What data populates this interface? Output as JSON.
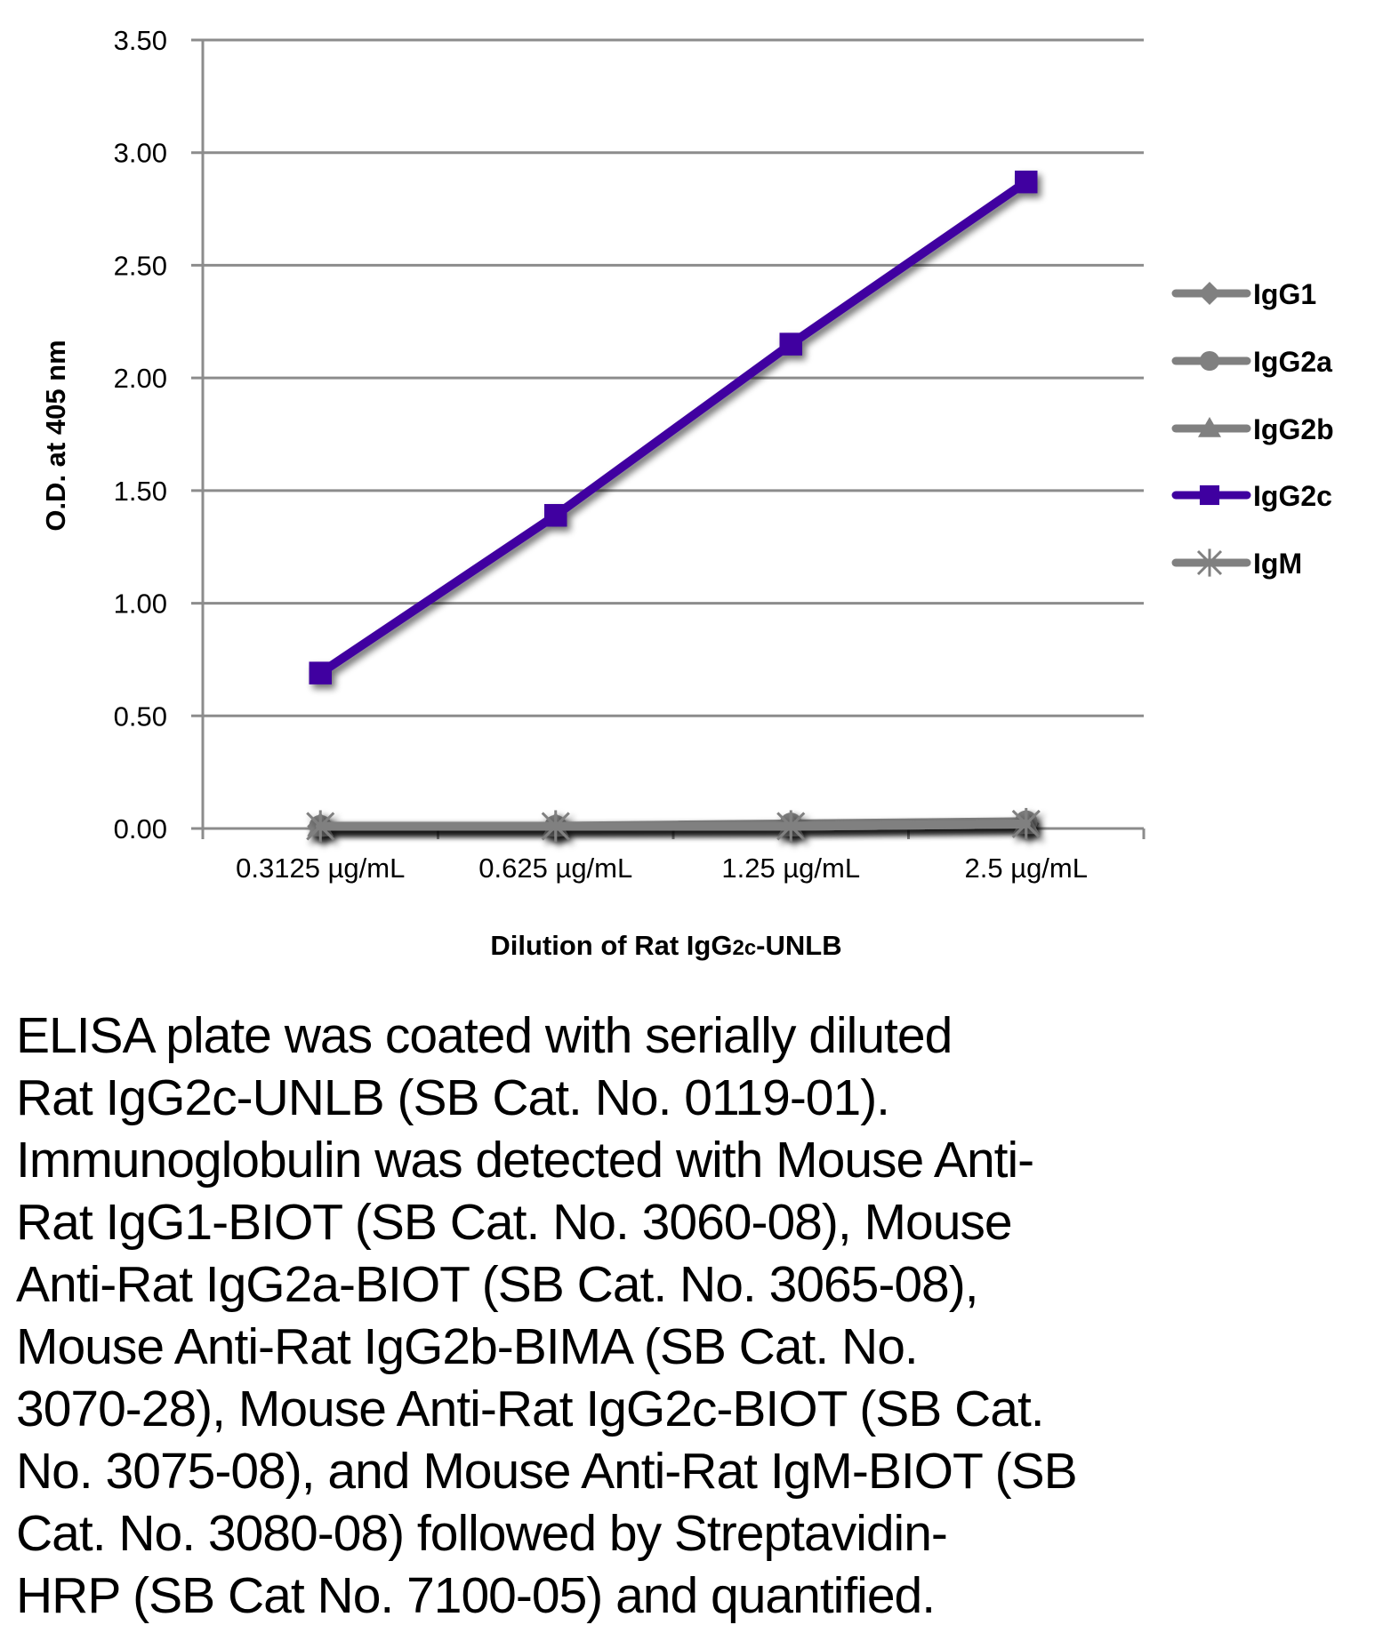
{
  "chart_data": {
    "type": "line",
    "title": "",
    "xlabel": "Dilution of Rat IgG2c-UNLB",
    "xlabel_parts": {
      "pre": "Dilution of Rat IgG",
      "sub": "2c",
      "post": "-UNLB"
    },
    "ylabel": "O.D. at 405 nm",
    "categories": [
      "0.3125 µg/mL",
      "0.625 µg/mL",
      "1.25 µg/mL",
      "2.5 µg/mL"
    ],
    "ylim": [
      0,
      3.5
    ],
    "yticks": [
      "0.00",
      "0.50",
      "1.00",
      "1.50",
      "2.00",
      "2.50",
      "3.00",
      "3.50"
    ],
    "ytick_values": [
      0,
      0.5,
      1.0,
      1.5,
      2.0,
      2.5,
      3.0,
      3.5
    ],
    "grid": "horizontal",
    "legend_position": "right",
    "series": [
      {
        "name": "IgG1",
        "marker": "diamond",
        "color": "#808080",
        "values": [
          0.01,
          0.01,
          0.01,
          0.02
        ]
      },
      {
        "name": "IgG2a",
        "marker": "circle",
        "color": "#808080",
        "values": [
          0.01,
          0.01,
          0.02,
          0.03
        ]
      },
      {
        "name": "IgG2b",
        "marker": "triangle",
        "color": "#808080",
        "values": [
          0.01,
          0.01,
          0.01,
          0.02
        ]
      },
      {
        "name": "IgG2c",
        "marker": "square",
        "color": "#3F00A0",
        "values": [
          0.69,
          1.39,
          2.15,
          2.87
        ]
      },
      {
        "name": "IgM",
        "marker": "star",
        "color": "#808080",
        "values": [
          0.01,
          0.01,
          0.01,
          0.02
        ]
      }
    ]
  },
  "colors": {
    "gridline": "#8C8C8C",
    "axis": "#8C8C8C",
    "neutral_series": "#808080",
    "highlight_series": "#3F00A0"
  },
  "caption": {
    "lines": [
      "ELISA plate was coated with serially diluted",
      "Rat IgG2c-UNLB (SB Cat. No. 0119-01).",
      "Immunoglobulin was detected with Mouse Anti-",
      "Rat IgG1-BIOT (SB Cat. No. 3060-08), Mouse",
      "Anti-Rat IgG2a-BIOT (SB Cat. No. 3065-08),",
      "Mouse Anti-Rat IgG2b-BIMA (SB Cat. No.",
      "3070-28), Mouse Anti-Rat IgG2c-BIOT (SB Cat.",
      "No. 3075-08), and Mouse Anti-Rat IgM-BIOT (SB",
      "Cat. No. 3080-08) followed by Streptavidin-",
      "HRP (SB Cat No. 7100-05) and quantified."
    ]
  }
}
